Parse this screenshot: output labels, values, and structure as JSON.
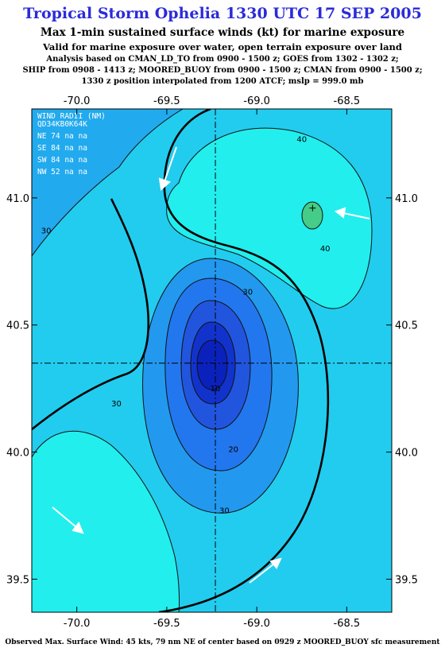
{
  "title": "Tropical Storm Ophelia 1330 UTC 17 SEP 2005",
  "subtitle": "Max 1-min sustained surface winds (kt) for marine exposure",
  "subtitle2": "Valid for marine exposure over water, open terrain exposure over land",
  "analysis_lines": [
    "Analysis based on  CMAN_LD_TO from 0900 - 1500 z;  GOES from 1302 - 1302 z;",
    "SHIP from 0908 - 1413 z;  MOORED_BUOY from 0900 - 1500 z;  CMAN from 0900 - 1500 z;",
    "1330 z position interpolated from 1200 ATCF; mslp = 999.0 mb"
  ],
  "footer": "Observed Max. Surface Wind: 45 kts, 79 nm NE of center based on 0929 z MOORED_BUOY sfc measurement",
  "wind_radii": {
    "header1": "WIND RADII (NM)",
    "header2": "QD34KB0K64K",
    "rows": [
      "NE 74  na  na",
      "SE 84  na  na",
      "SW 84  na  na",
      "NW 52  na  na"
    ]
  },
  "axes": {
    "x_ticks": [
      -70.0,
      -69.5,
      -69.0,
      -68.5
    ],
    "x_labels": [
      "-70.0",
      "-69.5",
      "-69.0",
      "-68.5"
    ],
    "y_ticks": [
      41.0,
      40.5,
      40.0,
      39.5
    ],
    "y_labels": [
      "41.0",
      "40.5",
      "40.0",
      "39.5"
    ],
    "y_labels_left": [
      "41.0",
      "40.5",
      "40.0",
      "39.5"
    ],
    "xlim": [
      -70.25,
      -68.25
    ],
    "ylim": [
      39.37,
      41.35
    ]
  },
  "storm_center": {
    "lon": -69.23,
    "lat": 40.35
  },
  "contour_labels": [
    {
      "text": "40",
      "lon": -68.75,
      "lat": 41.22
    },
    {
      "text": "40",
      "lon": -68.62,
      "lat": 40.79
    },
    {
      "text": "30",
      "lon": -70.17,
      "lat": 40.86
    },
    {
      "text": "30",
      "lon": -69.05,
      "lat": 40.62
    },
    {
      "text": "30",
      "lon": -69.78,
      "lat": 40.18
    },
    {
      "text": "30",
      "lon": -69.18,
      "lat": 39.76
    },
    {
      "text": "20",
      "lon": -69.13,
      "lat": 40.0
    },
    {
      "text": "10",
      "lon": -69.23,
      "lat": 40.24
    }
  ],
  "wind_max_marker": {
    "lon": -68.69,
    "lat": 40.96
  },
  "colors": {
    "title": "#2b2bd8",
    "fill_outer": "#22aaee",
    "fill_30": "#22ccee",
    "fill_40": "#22eeee",
    "fill_max": "#44cc88",
    "fill_inner_1": "#2299ee",
    "fill_inner_2": "#2277ee",
    "fill_inner_3": "#2255dd",
    "fill_inner_4": "#1133cc"
  }
}
